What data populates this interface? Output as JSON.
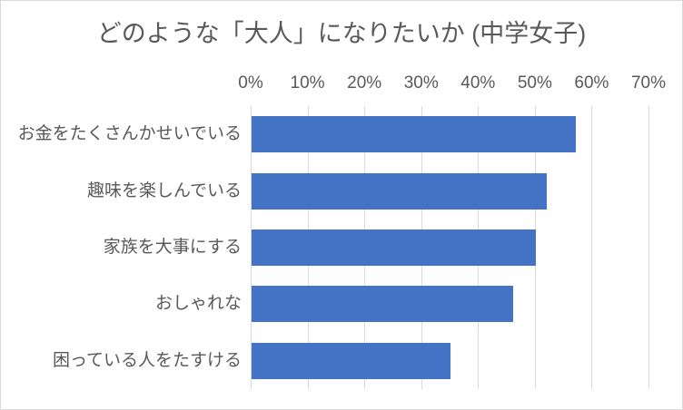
{
  "chart_data": {
    "type": "bar",
    "orientation": "horizontal",
    "title": "どのような「大人」になりたいか (中学女子)",
    "categories": [
      "お金をたくさんかせいでいる",
      "趣味を楽しんでいる",
      "家族を大事にする",
      "おしゃれな",
      "困っている人をたすける"
    ],
    "values": [
      57,
      52,
      50,
      46,
      35
    ],
    "value_unit": "%",
    "x_ticks": [
      "0%",
      "10%",
      "20%",
      "30%",
      "40%",
      "50%",
      "60%",
      "70%"
    ],
    "xlim": [
      0,
      70
    ],
    "xlabel": "",
    "ylabel": "",
    "grid": true,
    "legend": "none",
    "axis_position": "top",
    "colors": {
      "bar": "#4472C4",
      "gridline": "#d9d9d9",
      "text": "#595959",
      "border": "#d9d9d9",
      "background": "#ffffff"
    }
  }
}
